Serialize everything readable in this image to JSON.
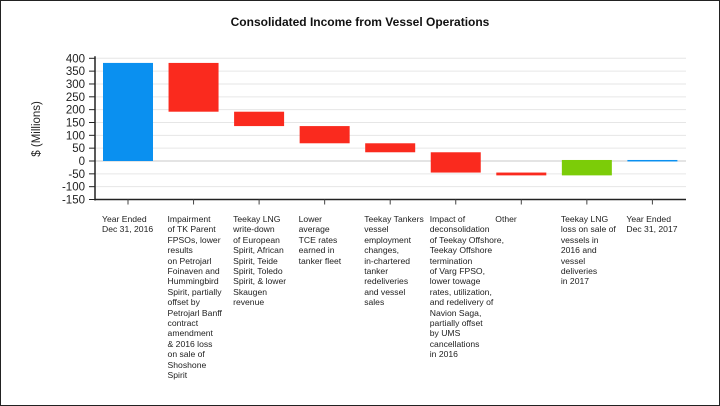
{
  "chart_data": {
    "type": "waterfall",
    "title": "Consolidated Income from Vessel Operations",
    "xlabel": "",
    "ylabel": "$ (Millions)",
    "ylim": [
      -150,
      400
    ],
    "yticks": [
      400,
      350,
      300,
      250,
      200,
      150,
      100,
      50,
      0,
      -50,
      -100,
      -150
    ],
    "grid": true,
    "colors": {
      "total": "#0a90f0",
      "decrease": "#fa2a1e",
      "increase": "#7ccc08"
    },
    "categories": [
      {
        "label": [
          "Year Ended",
          "Dec 31, 2016"
        ],
        "kind": "total",
        "start": 0,
        "end": 382
      },
      {
        "label": [
          "Impairment",
          "of TK Parent",
          "FPSOs, lower",
          "results",
          "on Petrojarl",
          "Foinaven and",
          "Hummingbird",
          "Spirit, partially",
          "offset by",
          "Petrojarl Banff",
          "contract",
          "amendment",
          "& 2016 loss",
          "on sale of",
          "Shoshone",
          "Spirit"
        ],
        "kind": "decrease",
        "start": 382,
        "end": 192
      },
      {
        "label": [
          "Teekay LNG",
          "write-down",
          "of European",
          "Spirit, African",
          "Spirit, Teide",
          "Spirit, Toledo",
          "Spirit, & lower",
          "Skaugen",
          "revenue"
        ],
        "kind": "decrease",
        "start": 192,
        "end": 136
      },
      {
        "label": [
          "Lower",
          "average",
          "TCE rates",
          "earned in",
          "tanker fleet"
        ],
        "kind": "decrease",
        "start": 136,
        "end": 69
      },
      {
        "label": [
          "Teekay Tankers",
          "vessel",
          "employment",
          "changes,",
          "in-chartered",
          "tanker",
          "redeliveries",
          "and vessel",
          "sales"
        ],
        "kind": "decrease",
        "start": 69,
        "end": 34
      },
      {
        "label": [
          "Impact of",
          "deconsolidation",
          "of Teekay Offshore,",
          "Teekay Offshore",
          "termination",
          "of Varg FPSO,",
          "lower towage",
          "rates, utilization,",
          "and redelivery of",
          "Navion Saga,",
          "partially offset",
          "by UMS",
          "cancellations",
          "in 2016"
        ],
        "kind": "decrease",
        "start": 34,
        "end": -45
      },
      {
        "label": [
          "Other"
        ],
        "kind": "decrease",
        "start": -45,
        "end": -56
      },
      {
        "label": [
          "Teekay LNG",
          "loss on sale of",
          "vessels in",
          "2016 and",
          "vessel",
          "deliveries",
          "in 2017"
        ],
        "kind": "increase",
        "start": -56,
        "end": 4
      },
      {
        "label": [
          "Year Ended",
          "Dec 31, 2017"
        ],
        "kind": "total",
        "start": 0,
        "end": 4
      }
    ]
  }
}
